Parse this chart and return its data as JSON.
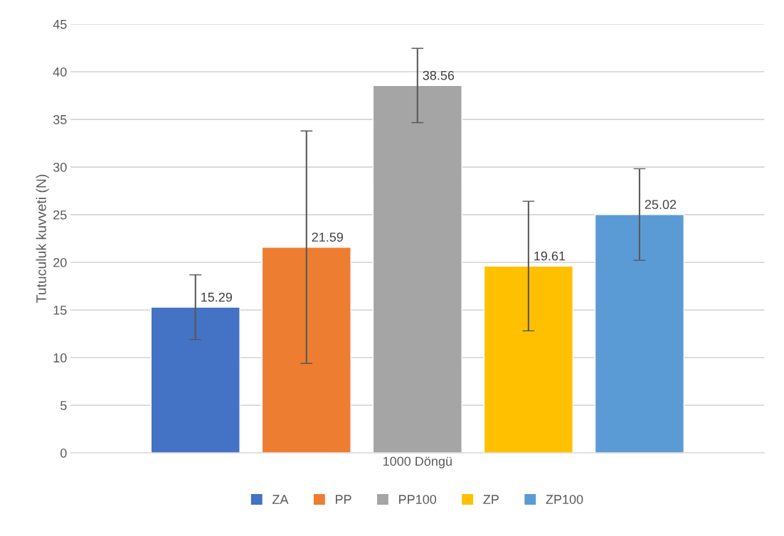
{
  "chart_data": {
    "type": "bar",
    "ylabel": "Tutuculuk kuvveti (N)",
    "categories": [
      "1000 Döngü"
    ],
    "series": [
      {
        "name": "ZA",
        "color": "#4472c4",
        "values": [
          15.29
        ],
        "errors": [
          3.4
        ]
      },
      {
        "name": "PP",
        "color": "#ed7d31",
        "values": [
          21.59
        ],
        "errors": [
          12.2
        ]
      },
      {
        "name": "PP100",
        "color": "#a5a5a5",
        "values": [
          38.56
        ],
        "errors": [
          3.9
        ]
      },
      {
        "name": "ZP",
        "color": "#ffc000",
        "values": [
          19.61
        ],
        "errors": [
          6.8
        ]
      },
      {
        "name": "ZP100",
        "color": "#5b9bd5",
        "values": [
          25.02
        ],
        "errors": [
          4.8
        ]
      }
    ],
    "ylim": [
      0,
      45
    ],
    "yticks": [
      0,
      5,
      10,
      15,
      20,
      25,
      30,
      35,
      40,
      45
    ],
    "grid": "y",
    "legend": "bottom",
    "data_labels": true
  }
}
